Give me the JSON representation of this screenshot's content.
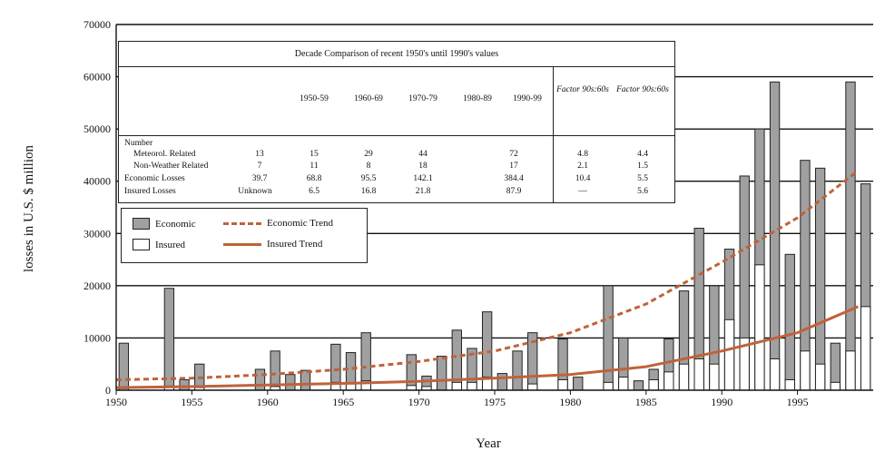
{
  "chart_data": {
    "type": "bar",
    "xlabel": "Year",
    "ylabel": "losses in U.S. $ million",
    "xlim": [
      1950,
      1999
    ],
    "ylim": [
      0,
      70000
    ],
    "x_ticks": [
      "1950",
      "1955",
      "1960",
      "1965",
      "1970",
      "1975",
      "1980",
      "1985",
      "1990",
      "1995"
    ],
    "y_ticks": [
      "0",
      "10000",
      "20000",
      "30000",
      "40000",
      "50000",
      "60000",
      "70000"
    ],
    "colors": {
      "economic": "#a0a0a0",
      "insured": "#ffffff",
      "trend": "#c0623a",
      "grid": "#111111"
    },
    "series": [
      {
        "name": "Economic",
        "values": [
          {
            "x": 1950,
            "y": 9000
          },
          {
            "x": 1953,
            "y": 19500
          },
          {
            "x": 1954,
            "y": 2000
          },
          {
            "x": 1955,
            "y": 5000
          },
          {
            "x": 1959,
            "y": 4000
          },
          {
            "x": 1960,
            "y": 7500
          },
          {
            "x": 1961,
            "y": 3000
          },
          {
            "x": 1962,
            "y": 3800
          },
          {
            "x": 1964,
            "y": 8800
          },
          {
            "x": 1965,
            "y": 7200
          },
          {
            "x": 1966,
            "y": 11000
          },
          {
            "x": 1969,
            "y": 6800
          },
          {
            "x": 1970,
            "y": 2700
          },
          {
            "x": 1971,
            "y": 6500
          },
          {
            "x": 1972,
            "y": 11500
          },
          {
            "x": 1973,
            "y": 8000
          },
          {
            "x": 1974,
            "y": 15000
          },
          {
            "x": 1975,
            "y": 3200
          },
          {
            "x": 1976,
            "y": 7500
          },
          {
            "x": 1977,
            "y": 11000
          },
          {
            "x": 1979,
            "y": 9800
          },
          {
            "x": 1980,
            "y": 2500
          },
          {
            "x": 1982,
            "y": 20000
          },
          {
            "x": 1983,
            "y": 10000
          },
          {
            "x": 1984,
            "y": 1800
          },
          {
            "x": 1985,
            "y": 4000
          },
          {
            "x": 1986,
            "y": 9800
          },
          {
            "x": 1987,
            "y": 19000
          },
          {
            "x": 1988,
            "y": 31000
          },
          {
            "x": 1989,
            "y": 20000
          },
          {
            "x": 1990,
            "y": 27000
          },
          {
            "x": 1991,
            "y": 41000
          },
          {
            "x": 1992,
            "y": 50000
          },
          {
            "x": 1993,
            "y": 59000
          },
          {
            "x": 1994,
            "y": 26000
          },
          {
            "x": 1995,
            "y": 44000
          },
          {
            "x": 1996,
            "y": 42500
          },
          {
            "x": 1997,
            "y": 9000
          },
          {
            "x": 1998,
            "y": 59000
          },
          {
            "x": 1999,
            "y": 39500
          }
        ]
      },
      {
        "name": "Insured",
        "values": [
          {
            "x": 1950,
            "y": 300
          },
          {
            "x": 1953,
            "y": 800
          },
          {
            "x": 1955,
            "y": 500
          },
          {
            "x": 1960,
            "y": 700
          },
          {
            "x": 1964,
            "y": 1500
          },
          {
            "x": 1965,
            "y": 1200
          },
          {
            "x": 1966,
            "y": 1800
          },
          {
            "x": 1969,
            "y": 900
          },
          {
            "x": 1970,
            "y": 700
          },
          {
            "x": 1972,
            "y": 1500
          },
          {
            "x": 1973,
            "y": 1500
          },
          {
            "x": 1974,
            "y": 2500
          },
          {
            "x": 1977,
            "y": 1200
          },
          {
            "x": 1979,
            "y": 2000
          },
          {
            "x": 1982,
            "y": 1500
          },
          {
            "x": 1983,
            "y": 2500
          },
          {
            "x": 1985,
            "y": 2000
          },
          {
            "x": 1986,
            "y": 3500
          },
          {
            "x": 1987,
            "y": 5000
          },
          {
            "x": 1988,
            "y": 6000
          },
          {
            "x": 1989,
            "y": 5000
          },
          {
            "x": 1990,
            "y": 13500
          },
          {
            "x": 1991,
            "y": 10000
          },
          {
            "x": 1992,
            "y": 24000
          },
          {
            "x": 1993,
            "y": 6000
          },
          {
            "x": 1994,
            "y": 2000
          },
          {
            "x": 1995,
            "y": 7500
          },
          {
            "x": 1996,
            "y": 5000
          },
          {
            "x": 1997,
            "y": 1500
          },
          {
            "x": 1998,
            "y": 7500
          },
          {
            "x": 1999,
            "y": 16000
          }
        ]
      },
      {
        "name": "Economic Trend",
        "style": "dashed",
        "values": [
          {
            "x": 1950,
            "y": 2000
          },
          {
            "x": 1955,
            "y": 2300
          },
          {
            "x": 1960,
            "y": 3000
          },
          {
            "x": 1965,
            "y": 4000
          },
          {
            "x": 1970,
            "y": 5500
          },
          {
            "x": 1975,
            "y": 7500
          },
          {
            "x": 1980,
            "y": 11000
          },
          {
            "x": 1985,
            "y": 16500
          },
          {
            "x": 1990,
            "y": 24500
          },
          {
            "x": 1995,
            "y": 33000
          },
          {
            "x": 1999,
            "y": 42000
          }
        ]
      },
      {
        "name": "Insured Trend",
        "style": "solid",
        "values": [
          {
            "x": 1950,
            "y": 500
          },
          {
            "x": 1955,
            "y": 700
          },
          {
            "x": 1960,
            "y": 1000
          },
          {
            "x": 1965,
            "y": 1300
          },
          {
            "x": 1970,
            "y": 1700
          },
          {
            "x": 1975,
            "y": 2300
          },
          {
            "x": 1980,
            "y": 3000
          },
          {
            "x": 1985,
            "y": 4500
          },
          {
            "x": 1990,
            "y": 7500
          },
          {
            "x": 1995,
            "y": 11000
          },
          {
            "x": 1999,
            "y": 16000
          }
        ]
      }
    ],
    "legend": {
      "economic": "Economic",
      "insured": "Insured",
      "economic_trend": "Economic Trend",
      "insured_trend": "Insured Trend",
      "placement": "upper-left"
    },
    "inset_table": {
      "title": "Decade Comparison of recent 1950's until 1990's values",
      "columns": [
        "1950-59",
        "1960-69",
        "1970-79",
        "1980-89",
        "1990-99"
      ],
      "factor_columns": [
        "Factor 90s:60s",
        "Factor 90s:60s"
      ],
      "section_label": "Number",
      "rows": [
        {
          "label": "Meteorol. Related",
          "values": [
            "13",
            "15",
            "29",
            "44",
            "72"
          ],
          "factors": [
            "4.8",
            "4.4"
          ]
        },
        {
          "label": "Non-Weather Related",
          "values": [
            "7",
            "11",
            "8",
            "18",
            "17"
          ],
          "factors": [
            "2.1",
            "1.5"
          ]
        },
        {
          "label": "Economic Losses",
          "values": [
            "39.7",
            "68.8",
            "95.5",
            "142.1",
            "384.4"
          ],
          "factors": [
            "10.4",
            "5.5"
          ]
        },
        {
          "label": "Insured Losses",
          "values": [
            "Unknown",
            "6.5",
            "16.8",
            "21.8",
            "87.9"
          ],
          "factors": [
            "—",
            "5.6"
          ]
        }
      ]
    }
  }
}
